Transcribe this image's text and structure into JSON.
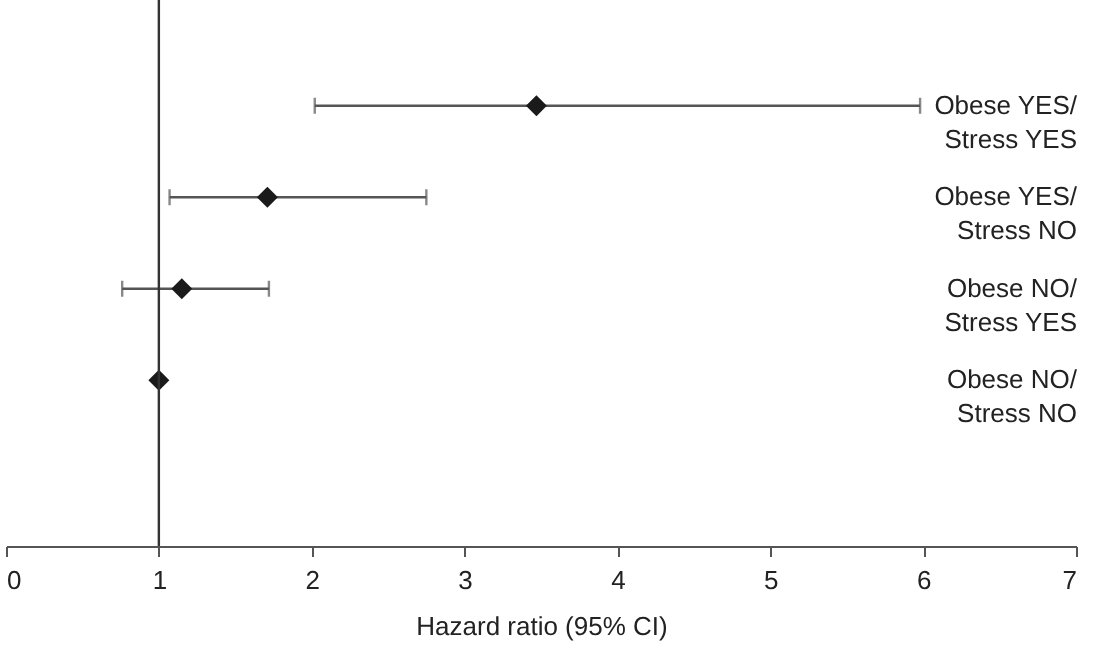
{
  "chart_data": {
    "type": "scatter",
    "orientation": "horizontal",
    "categories": [
      "Obese YES/ Stress YES",
      "Obese YES/ Stress NO",
      "Obese NO/ Stress YES",
      "Obese NO/ Stress NO"
    ],
    "series": [
      {
        "color": "#1a1a1a",
        "values": [
          3.47,
          1.71,
          1.15,
          1.0
        ],
        "errors": [
          [
            2.02,
            5.98
          ],
          [
            1.07,
            2.75
          ],
          [
            0.76,
            1.72
          ],
          null
        ]
      }
    ],
    "xlabel": "Hazard ratio (95% CI)",
    "xlim": [
      0,
      7
    ],
    "xticks": [
      0,
      1,
      2,
      3,
      4,
      5,
      6,
      7
    ],
    "marker": "diamond",
    "grid": false,
    "ref_lines": [
      {
        "axis": "x",
        "value": 1,
        "color": "#333333"
      }
    ]
  }
}
